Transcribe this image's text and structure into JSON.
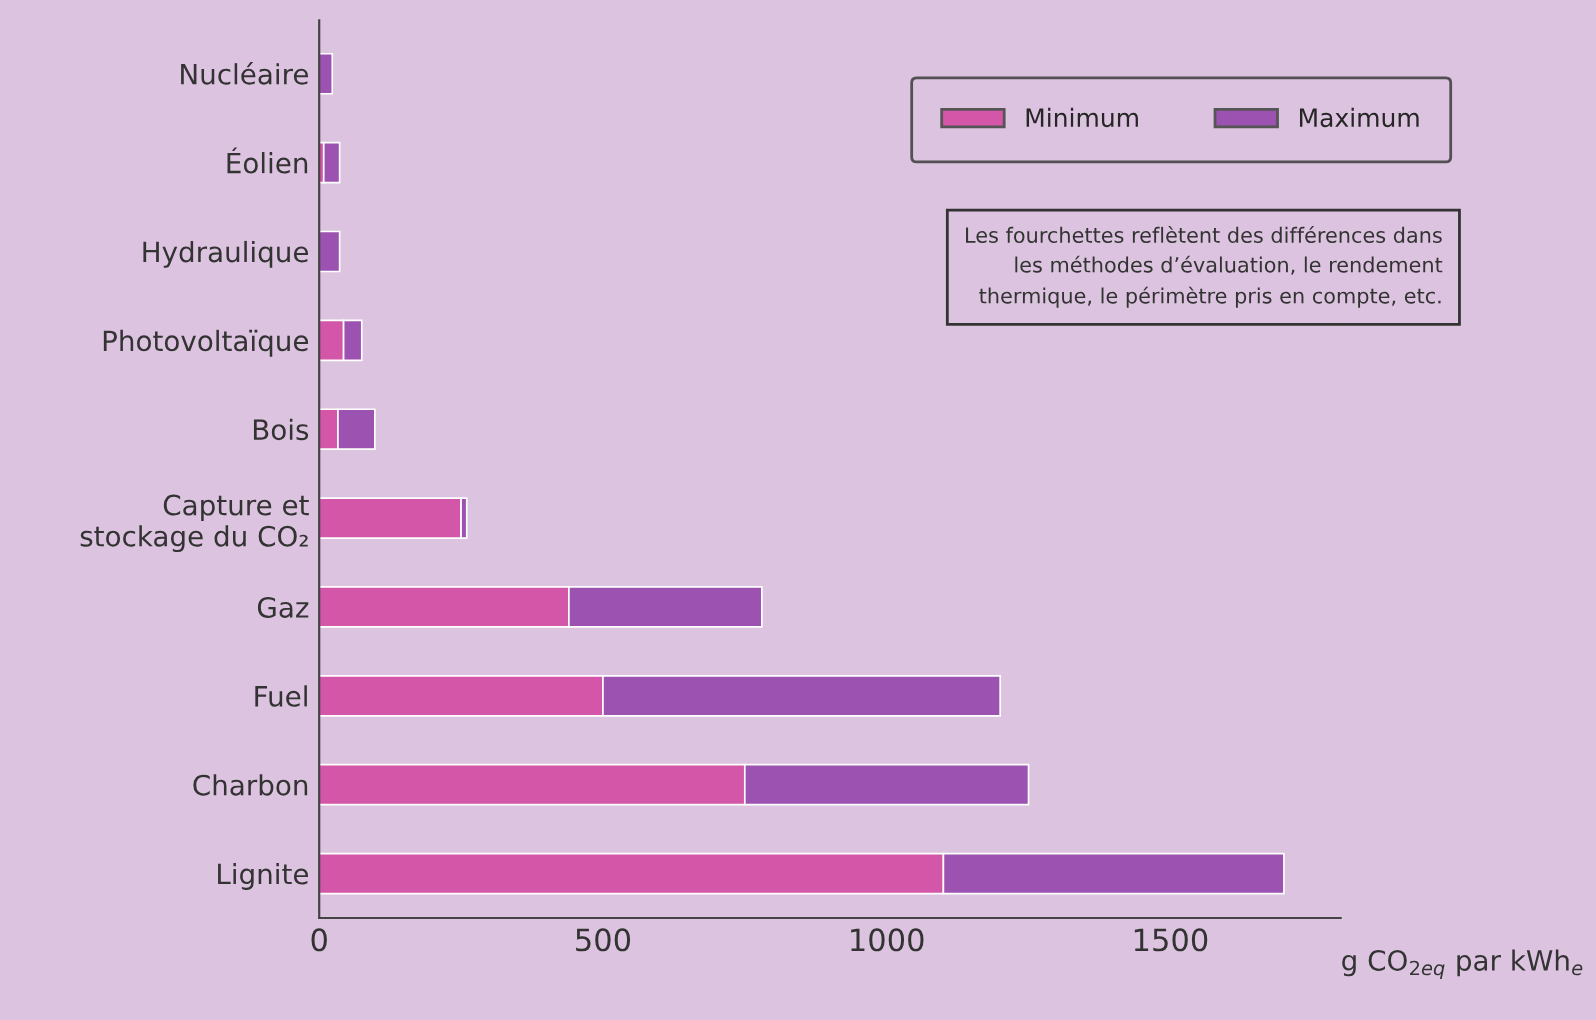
{
  "chart_data": {
    "type": "bar",
    "orientation": "horizontal",
    "stacked": true,
    "categories": [
      "Nucléaire",
      "Éolien",
      "Hydraulique",
      "Photovoltaïque",
      "Bois",
      "Capture et\nstockage du CO₂",
      "Gaz",
      "Fuel",
      "Charbon",
      "Lignite"
    ],
    "series": [
      {
        "name": "Minimum",
        "color": "#d456a8",
        "values": [
          null,
          8,
          null,
          43,
          33,
          250,
          440,
          500,
          750,
          1100
        ]
      },
      {
        "name": "Maximum",
        "color": "#9b52b0",
        "values": [
          23,
          28,
          36,
          32,
          65,
          10,
          340,
          700,
          500,
          600
        ]
      }
    ],
    "xlim": [
      0,
      1800
    ],
    "xticks": [
      0,
      500,
      1000,
      1500
    ],
    "xlabel": "g CO$_{2eq}$ par kWh$_{e}$",
    "annotations": [
      "Les fourchettes reflètent des différences dans\nles méthodes d’évaluation, le rendement\nthermique, le périmètre pris en compte, etc."
    ],
    "legend": "top right",
    "grid": false
  }
}
